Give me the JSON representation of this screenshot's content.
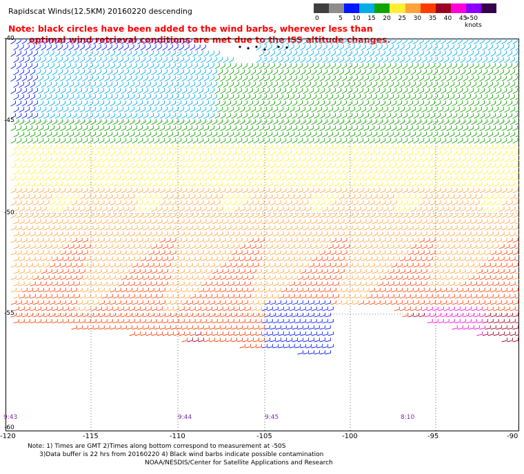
{
  "title": "Rapidscat Winds(12.5KM) 20160220 descending",
  "note": {
    "line1": "Note: black circles have been added to the wind barbs, wherever less than",
    "line2": "optimal wind retrieval conditions are met due to the ISS altitude changes."
  },
  "legend": {
    "labels": [
      "0",
      "5",
      "10",
      "15",
      "20",
      "25",
      "30",
      "35",
      "40",
      "45",
      ">50 knots"
    ],
    "colors": [
      "#3f3f3f",
      "#8d8d8d",
      "#0017ff",
      "#00ade9",
      "#10a400",
      "#ffee33",
      "#ffa23a",
      "#ff3c00",
      "#9a0023",
      "#ff00d8",
      "#8c00ff",
      "#34004b"
    ]
  },
  "map": {
    "lat_labels": [
      "-40",
      "-45",
      "-50",
      "-55",
      "-60"
    ],
    "lon_labels": [
      "-120",
      "-115",
      "-110",
      "-105",
      "-100",
      "-95",
      "-90"
    ],
    "pass_times": [
      "9:43",
      "9:44",
      "9:45",
      "8:10"
    ]
  },
  "footnote": {
    "line1": "Note: 1) Times are GMT 2)Times along bottom correspond to measurement at -50S",
    "line2": "      3)Data buffer is 22 hrs from 20160220 4) Black wind barbs indicate possible contamination"
  },
  "credit": "NOAA/NESDIS/Center for Satellite Applications and Research"
}
